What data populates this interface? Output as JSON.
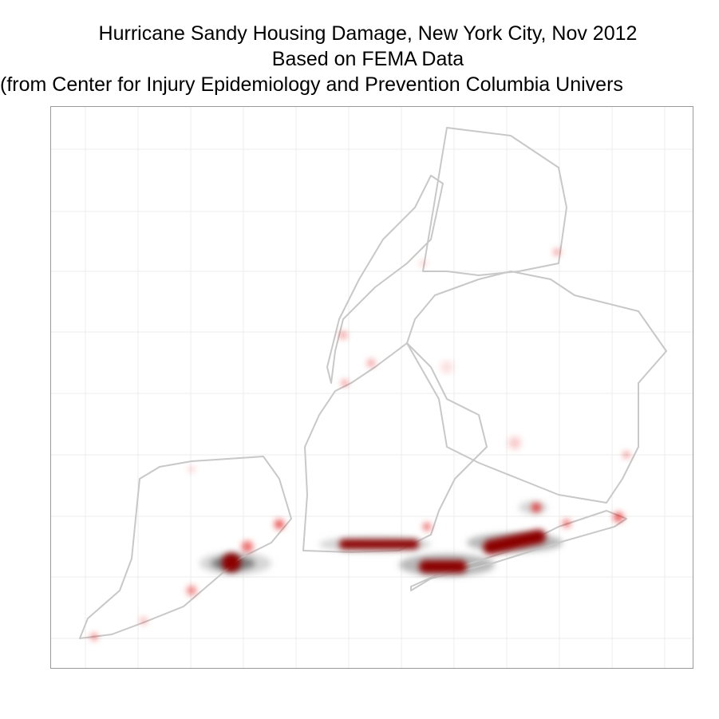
{
  "title": {
    "line1": "Hurricane Sandy Housing Damage, New York City, Nov 2012",
    "line2": "Based on FEMA Data",
    "line3": "(from Center for Injury Epidemiology and Prevention Columbia Univers"
  }
}
